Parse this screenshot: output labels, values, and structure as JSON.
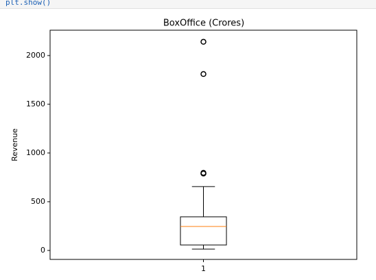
{
  "code": "plt.show()",
  "chart_data": {
    "type": "box",
    "title": "BoxOffice (Crores)",
    "y_label": "Revenue",
    "categories": [
      "1"
    ],
    "boxes": [
      {
        "whislo": 14,
        "q1": 56,
        "median": 246,
        "q3": 345,
        "whishi": 655,
        "fliers": [
          789,
          796,
          1810,
          2141
        ]
      }
    ],
    "box_color": "#000000",
    "median_color": "#ff7f0e",
    "ylim": [
      -92,
      2260
    ],
    "yticks": [
      0,
      500,
      1000,
      1500,
      2000
    ],
    "grid": false
  }
}
